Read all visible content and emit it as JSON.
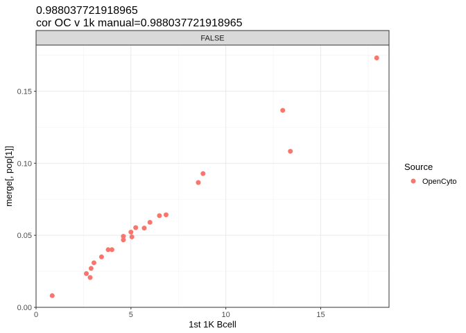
{
  "chart_data": {
    "type": "scatter",
    "title": "0.988037721918965",
    "subtitle": "cor OC v 1k manual=0.988037721918965",
    "facet_label": "FALSE",
    "xlabel": "1st 1K Bcell",
    "ylabel": "merge[, pop[1]]",
    "xlim": [
      0,
      18.6
    ],
    "ylim": [
      0,
      0.182
    ],
    "x_ticks": [
      0,
      5,
      10,
      15
    ],
    "x_tick_labels": [
      "0",
      "5",
      "10",
      "15"
    ],
    "y_ticks": [
      0.0,
      0.05,
      0.1,
      0.15
    ],
    "y_tick_labels": [
      "0.00",
      "0.05",
      "0.10",
      "0.15"
    ],
    "grid": true,
    "legend": {
      "title": "Source",
      "position": "right",
      "entries": [
        {
          "label": "OpenCyto",
          "color": "#F8766D"
        }
      ]
    },
    "series": [
      {
        "name": "OpenCyto",
        "color": "#F8766D",
        "points": [
          [
            0.85,
            0.0081
          ],
          [
            2.65,
            0.0234
          ],
          [
            2.85,
            0.0207
          ],
          [
            2.9,
            0.027
          ],
          [
            3.05,
            0.0309
          ],
          [
            3.45,
            0.035
          ],
          [
            3.8,
            0.04
          ],
          [
            4.0,
            0.04
          ],
          [
            4.6,
            0.0468
          ],
          [
            4.6,
            0.0493
          ],
          [
            5.0,
            0.0522
          ],
          [
            5.05,
            0.0489
          ],
          [
            5.25,
            0.0553
          ],
          [
            5.7,
            0.055
          ],
          [
            6.0,
            0.059
          ],
          [
            6.5,
            0.0636
          ],
          [
            6.85,
            0.0642
          ],
          [
            8.55,
            0.0866
          ],
          [
            8.8,
            0.0928
          ],
          [
            13.0,
            0.1367
          ],
          [
            13.4,
            0.1083
          ],
          [
            17.95,
            0.1731
          ]
        ]
      }
    ]
  }
}
